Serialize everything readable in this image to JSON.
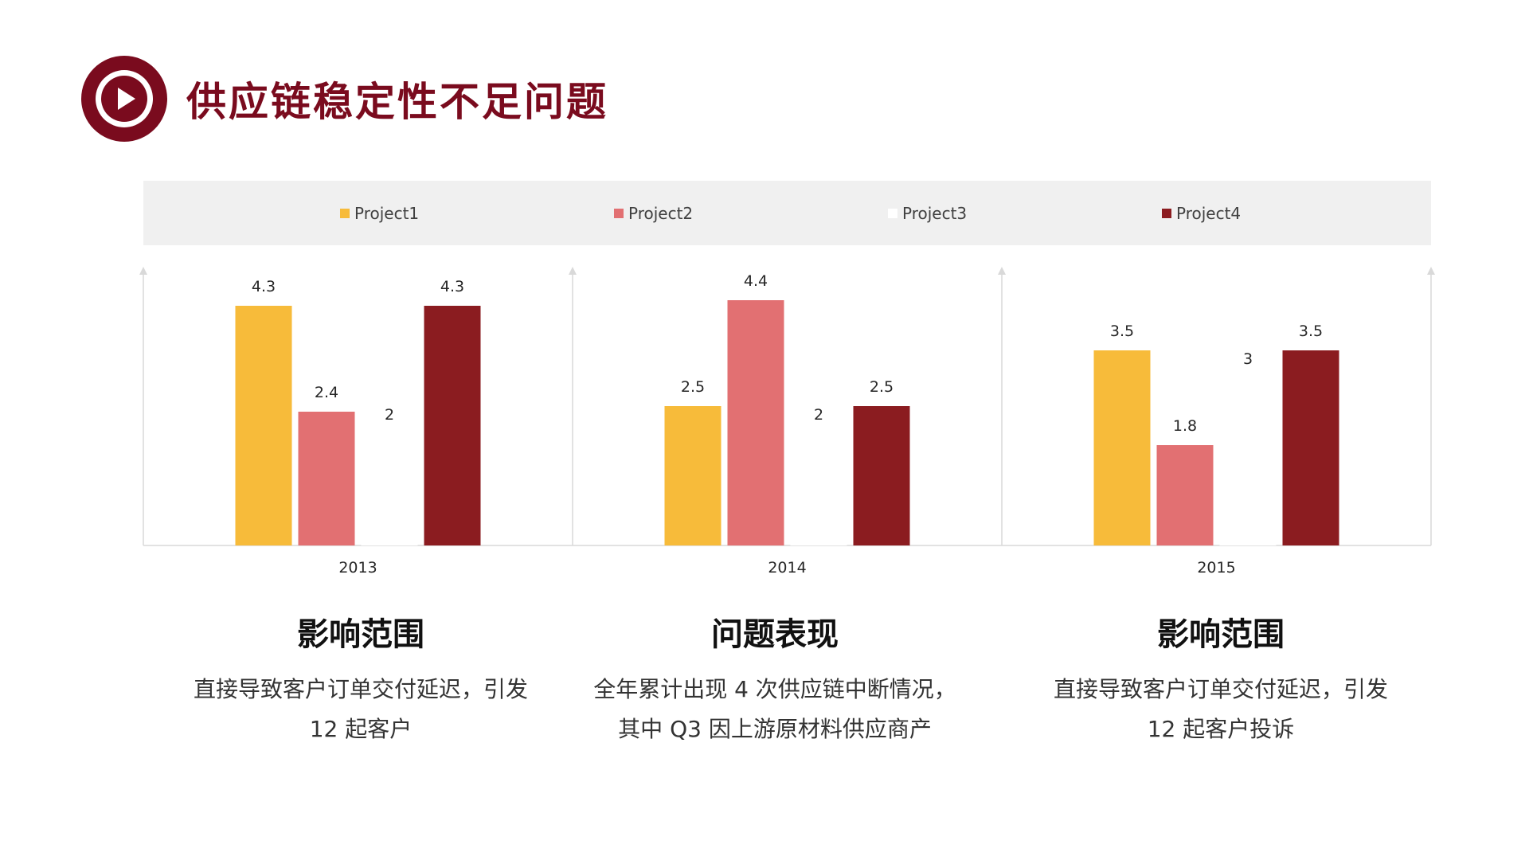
{
  "slide": {
    "title": "供应链稳定性不足问题"
  },
  "icons": {
    "title_icon": "play-circle-icon"
  },
  "colors": {
    "brand": "#7a0b1e",
    "project1": "#f7bb3a",
    "project2": "#e27072",
    "project3": "#ffffff",
    "project4": "#8b1c20"
  },
  "chart_data": {
    "type": "bar",
    "categories": [
      "2013",
      "2014",
      "2015"
    ],
    "series": [
      {
        "name": "Project1",
        "values": [
          4.3,
          2.5,
          3.5
        ]
      },
      {
        "name": "Project2",
        "values": [
          2.4,
          4.4,
          1.8
        ]
      },
      {
        "name": "Project3",
        "values": [
          2,
          2,
          3
        ]
      },
      {
        "name": "Project4",
        "values": [
          4.3,
          2.5,
          3.5
        ]
      }
    ],
    "legend": "top",
    "grid": false,
    "ylim": [
      0,
      5
    ],
    "data_labels": true
  },
  "info_columns": [
    {
      "heading": "影响范围",
      "lines": [
        "直接导致客户订单交付延迟，引发",
        "12 起客户"
      ]
    },
    {
      "heading": "问题表现",
      "lines": [
        "全年累计出现 4 次供应链中断情况，",
        "其中 Q3 因上游原材料供应商产"
      ]
    },
    {
      "heading": "影响范围",
      "lines": [
        "直接导致客户订单交付延迟，引发",
        "12 起客户投诉"
      ]
    }
  ]
}
